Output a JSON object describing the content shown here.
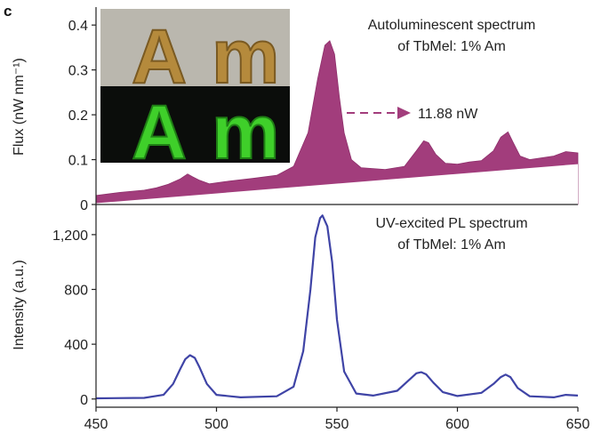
{
  "panel_label": "c",
  "colors": {
    "auto_fill": "#a23d7c",
    "auto_fill_dark": "#8e2f6b",
    "pl_line": "#3f44a6",
    "arrow": "#a23d7c",
    "axis": "#222222",
    "inset_top_bg": "#b9b6ae",
    "inset_letters_top": "#b58a3c",
    "inset_bottom_bg": "#0b0d0b",
    "inset_letters_bottom": "#3fcf2a"
  },
  "inset": {
    "letters": [
      "A",
      "m"
    ],
    "top_icon": "photo-ambient-light",
    "bottom_icon": "photo-autoluminescence-green"
  },
  "chart_data": [
    {
      "type": "area",
      "name": "top-panel",
      "title": "Autoluminescent spectrum of TbMel: 1% Am",
      "title_lines": [
        "Autoluminescent spectrum",
        "of TbMel: 1% Am"
      ],
      "ylabel": "Flux (nW nm⁻¹)",
      "xlim": [
        450,
        650
      ],
      "ylim": [
        0,
        0.44
      ],
      "yticks": [
        0,
        0.1,
        0.2,
        0.3,
        0.4
      ],
      "ytick_labels": [
        "0",
        "0.1",
        "0.2",
        "0.3",
        "0.4"
      ],
      "grid": false,
      "annotation": "11.88 nW",
      "baseline": {
        "x": [
          450,
          650
        ],
        "y": [
          0.003,
          0.09
        ]
      },
      "x": [
        450,
        460,
        470,
        475,
        480,
        485,
        488,
        490,
        493,
        497,
        505,
        515,
        525,
        532,
        538,
        542,
        545,
        547,
        549,
        551,
        553,
        556,
        560,
        570,
        578,
        583,
        586,
        588,
        591,
        595,
        600,
        605,
        610,
        615,
        618,
        621,
        623,
        626,
        630,
        640,
        645,
        650
      ],
      "y": [
        0.02,
        0.027,
        0.032,
        0.037,
        0.045,
        0.057,
        0.068,
        0.062,
        0.054,
        0.046,
        0.052,
        0.058,
        0.065,
        0.085,
        0.16,
        0.28,
        0.355,
        0.365,
        0.335,
        0.24,
        0.16,
        0.1,
        0.082,
        0.078,
        0.085,
        0.12,
        0.142,
        0.138,
        0.112,
        0.092,
        0.09,
        0.095,
        0.098,
        0.12,
        0.15,
        0.162,
        0.14,
        0.108,
        0.1,
        0.108,
        0.118,
        0.115
      ]
    },
    {
      "type": "line",
      "name": "bottom-panel",
      "title": "UV-excited PL spectrum of TbMel: 1% Am",
      "title_lines": [
        "UV-excited PL spectrum",
        "of TbMel: 1% Am"
      ],
      "xlabel": "",
      "ylabel": "Intensity (a.u.)",
      "xlim": [
        450,
        650
      ],
      "ylim": [
        -60,
        1420
      ],
      "xticks": [
        450,
        500,
        550,
        600,
        650
      ],
      "xtick_labels": [
        "450",
        "500",
        "550",
        "600",
        "650"
      ],
      "yticks": [
        0,
        400,
        800,
        1200
      ],
      "ytick_labels": [
        "0",
        "400",
        "800",
        "1,200"
      ],
      "grid": false,
      "x": [
        450,
        470,
        478,
        482,
        485,
        487,
        489,
        491,
        493,
        496,
        500,
        510,
        525,
        532,
        536,
        539,
        541,
        543,
        544,
        546,
        548,
        550,
        553,
        558,
        565,
        575,
        580,
        583,
        585,
        587,
        590,
        594,
        600,
        610,
        615,
        618,
        620,
        622,
        625,
        630,
        640,
        645,
        650
      ],
      "y": [
        5,
        8,
        30,
        110,
        220,
        290,
        320,
        300,
        230,
        110,
        30,
        12,
        20,
        90,
        350,
        800,
        1180,
        1320,
        1340,
        1260,
        1000,
        580,
        200,
        40,
        25,
        60,
        140,
        188,
        196,
        180,
        120,
        50,
        22,
        45,
        110,
        160,
        178,
        160,
        80,
        20,
        12,
        30,
        25
      ]
    }
  ]
}
